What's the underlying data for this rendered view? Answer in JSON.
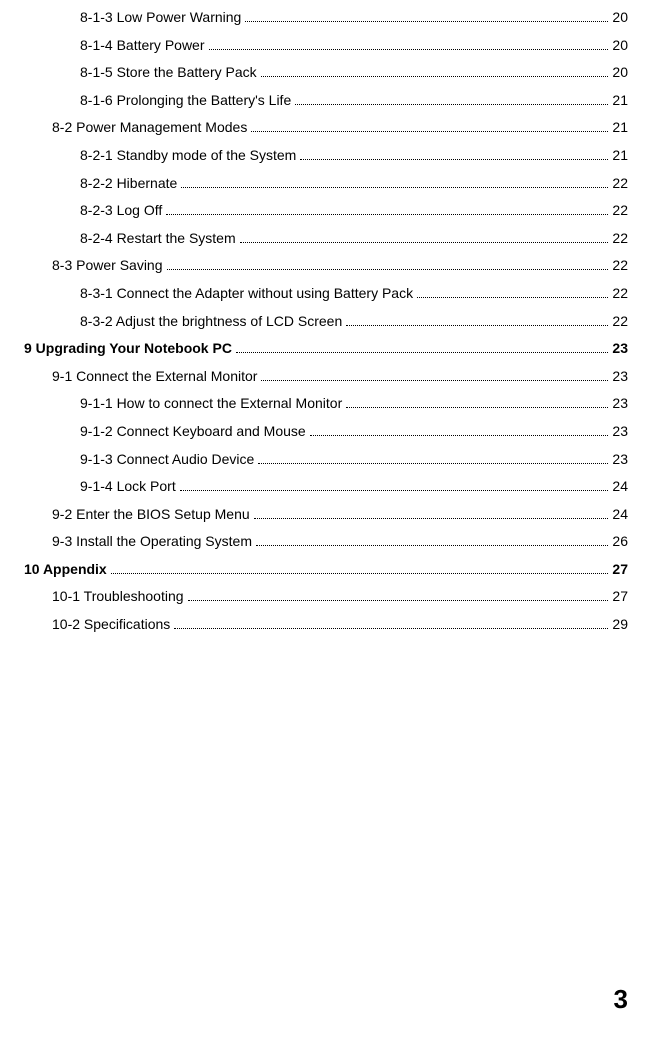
{
  "toc": [
    {
      "level": 2,
      "title": "8-1-3 Low Power Warning",
      "page": "20"
    },
    {
      "level": 2,
      "title": "8-1-4 Battery Power",
      "page": "20"
    },
    {
      "level": 2,
      "title": "8-1-5 Store the Battery Pack",
      "page": "20"
    },
    {
      "level": 2,
      "title": "8-1-6 Prolonging the Battery's Life",
      "page": "21"
    },
    {
      "level": 1,
      "title": "8-2 Power Management Modes",
      "page": "21"
    },
    {
      "level": 2,
      "title": "8-2-1 Standby mode of the System",
      "page": "21"
    },
    {
      "level": 2,
      "title": "8-2-2 Hibernate",
      "page": "22"
    },
    {
      "level": 2,
      "title": "8-2-3 Log Off",
      "page": "22"
    },
    {
      "level": 2,
      "title": "8-2-4 Restart the System",
      "page": "22"
    },
    {
      "level": 1,
      "title": "8-3 Power Saving",
      "page": "22"
    },
    {
      "level": 2,
      "title": "8-3-1 Connect the Adapter without using Battery Pack",
      "page": "22"
    },
    {
      "level": 2,
      "title": "8-3-2 Adjust the brightness of LCD Screen",
      "page": "22"
    },
    {
      "level": 0,
      "title": "9 Upgrading Your Notebook PC",
      "page": "23"
    },
    {
      "level": 1,
      "title": "9-1 Connect the External Monitor",
      "page": "23"
    },
    {
      "level": 2,
      "title": "9-1-1 How to connect the External Monitor",
      "page": "23"
    },
    {
      "level": 2,
      "title": "9-1-2 Connect Keyboard and Mouse",
      "page": "23"
    },
    {
      "level": 2,
      "title": "9-1-3 Connect Audio Device",
      "page": "23"
    },
    {
      "level": 2,
      "title": "9-1-4 Lock Port",
      "page": "24"
    },
    {
      "level": 1,
      "title": "9-2 Enter the BIOS Setup Menu",
      "page": "24"
    },
    {
      "level": 1,
      "title": "9-3 Install the Operating System",
      "page": "26"
    },
    {
      "level": 0,
      "title": "10 Appendix",
      "page": "27"
    },
    {
      "level": 1,
      "title": "10-1 Troubleshooting",
      "page": "27"
    },
    {
      "level": 1,
      "title": "10-2 Specifications",
      "page": "29"
    }
  ],
  "pageNumber": "3"
}
